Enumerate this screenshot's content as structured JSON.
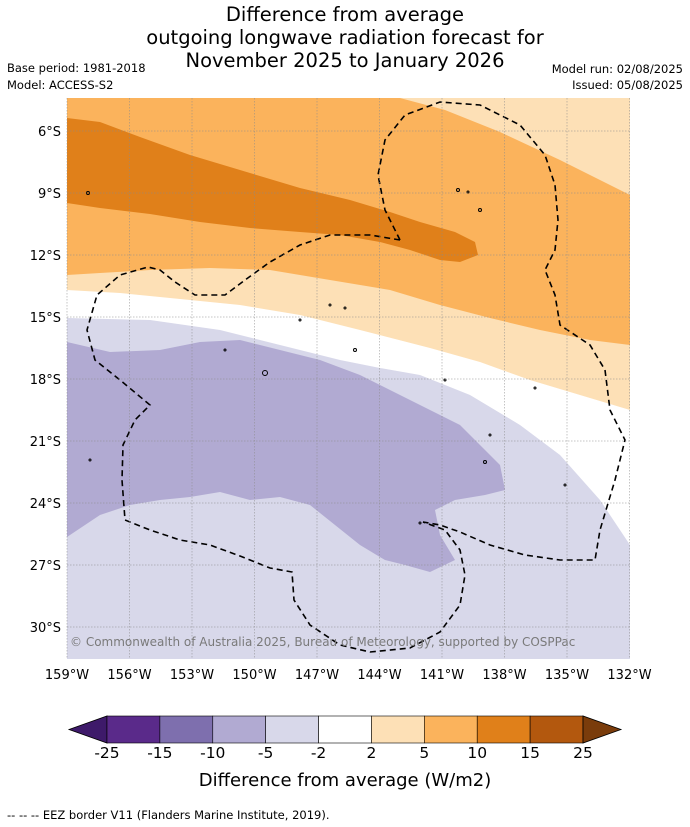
{
  "title": {
    "line1": "Difference from average",
    "line2": "outgoing longwave radiation forecast for",
    "line3": "November 2025 to January 2026"
  },
  "meta": {
    "base_period": "Base period: 1981-2018",
    "model": "Model: ACCESS-S2",
    "model_run": "Model run: 02/08/2025",
    "issued": "Issued: 05/08/2025"
  },
  "map": {
    "lat_labels": [
      "6°S",
      "9°S",
      "12°S",
      "15°S",
      "18°S",
      "21°S",
      "24°S",
      "27°S",
      "30°S"
    ],
    "lon_labels": [
      "159°W",
      "156°W",
      "153°W",
      "150°W",
      "147°W",
      "144°W",
      "141°W",
      "138°W",
      "135°W",
      "132°W"
    ],
    "copyright": "© Commonwealth of Australia 2025, Bureau of Meteorology, supported by COSPPac",
    "colors": {
      "strong_positive": "#e0801a",
      "positive": "#fbb35c",
      "weak_positive": "#fde0b6",
      "neutral": "#ffffff",
      "weak_negative": "#d8d8ea",
      "negative": "#b1aad2"
    }
  },
  "colorbar": {
    "ticks": [
      "-25",
      "-15",
      "-10",
      "-5",
      "-2",
      "2",
      "5",
      "10",
      "15",
      "25"
    ],
    "colors": [
      "#3e1a6a",
      "#5a2a8a",
      "#7e6fae",
      "#b1aad2",
      "#d8d8ea",
      "#ffffff",
      "#fde0b6",
      "#fbb35c",
      "#e0801a",
      "#b3580e",
      "#7a3c0b"
    ],
    "label": "Difference from average (W/m2)"
  },
  "footnote": "-- -- -- EEZ border V11 (Flanders Marine Institute, 2019)."
}
